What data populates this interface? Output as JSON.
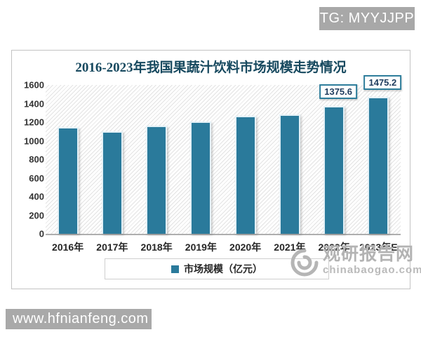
{
  "badge": {
    "text": "TG: MYYJJPP"
  },
  "footer": {
    "url": "www.hfnianfeng.com"
  },
  "watermark": {
    "site_name": "观研报告网",
    "site_url": "chinabaogao.com"
  },
  "chart_data": {
    "type": "bar",
    "title": "2016-2023年我国果蔬汁饮料市场规模走势情况",
    "legend_label": "市场规模（亿元）",
    "legend_position": "bottom",
    "categories": [
      "2016年",
      "2017年",
      "2018年",
      "2019年",
      "2020年",
      "2021年",
      "2022年",
      "2023年E"
    ],
    "series": [
      {
        "name": "市场规模（亿元）",
        "values": [
          1150,
          1100,
          1160,
          1210,
          1270,
          1280,
          1375.6,
          1475.2
        ]
      }
    ],
    "data_labels": [
      null,
      null,
      null,
      null,
      null,
      null,
      "1375.6",
      "1475.2"
    ],
    "xlabel": "",
    "ylabel": "",
    "ylim": [
      0,
      1600
    ],
    "y_ticks": [
      0,
      200,
      400,
      600,
      800,
      1000,
      1200,
      1400,
      1600
    ],
    "grid": false,
    "plot_background": "diagonal-hatch",
    "colors": {
      "bar": "#2a7a9b",
      "title": "#17495f",
      "value_label_text": "#1f3c5e",
      "value_label_border": "#2e7d9b",
      "hatch_line": "#e3e3e3",
      "axis_line": "#aeaeae",
      "panel_border": "#c3c3c3",
      "watermark_gray": "#b3b3b3",
      "badge_gray": "#a8a8a8"
    }
  }
}
